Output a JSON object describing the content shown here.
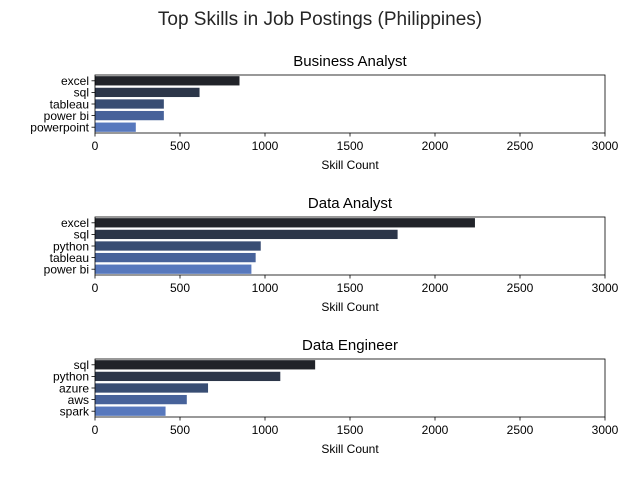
{
  "figure": {
    "title": "Top Skills in Job Postings (Philippines)"
  },
  "chart_data": [
    {
      "type": "bar",
      "orientation": "horizontal",
      "title": "Business Analyst",
      "xlabel": "Skill Count",
      "ylabel": "",
      "xlim": [
        0,
        3000
      ],
      "xticks": [
        0,
        500,
        1000,
        1500,
        2000,
        2500,
        3000
      ],
      "categories": [
        "excel",
        "sql",
        "tableau",
        "power bi",
        "powerpoint"
      ],
      "values": [
        850,
        615,
        405,
        405,
        240
      ],
      "grid": false,
      "legend": "none"
    },
    {
      "type": "bar",
      "orientation": "horizontal",
      "title": "Data Analyst",
      "xlabel": "Skill Count",
      "ylabel": "",
      "xlim": [
        0,
        3000
      ],
      "xticks": [
        0,
        500,
        1000,
        1500,
        2000,
        2500,
        3000
      ],
      "categories": [
        "excel",
        "sql",
        "python",
        "tableau",
        "power bi"
      ],
      "values": [
        2235,
        1780,
        975,
        945,
        920
      ],
      "grid": false,
      "legend": "none"
    },
    {
      "type": "bar",
      "orientation": "horizontal",
      "title": "Data Engineer",
      "xlabel": "Skill Count",
      "ylabel": "",
      "xlim": [
        0,
        3000
      ],
      "xticks": [
        0,
        500,
        1000,
        1500,
        2000,
        2500,
        3000
      ],
      "categories": [
        "sql",
        "python",
        "azure",
        "aws",
        "spark"
      ],
      "values": [
        1295,
        1090,
        665,
        540,
        415
      ],
      "grid": false,
      "legend": "none"
    }
  ],
  "palette": [
    "#212329",
    "#2c3649",
    "#384d73",
    "#47629a",
    "#5778bd"
  ]
}
